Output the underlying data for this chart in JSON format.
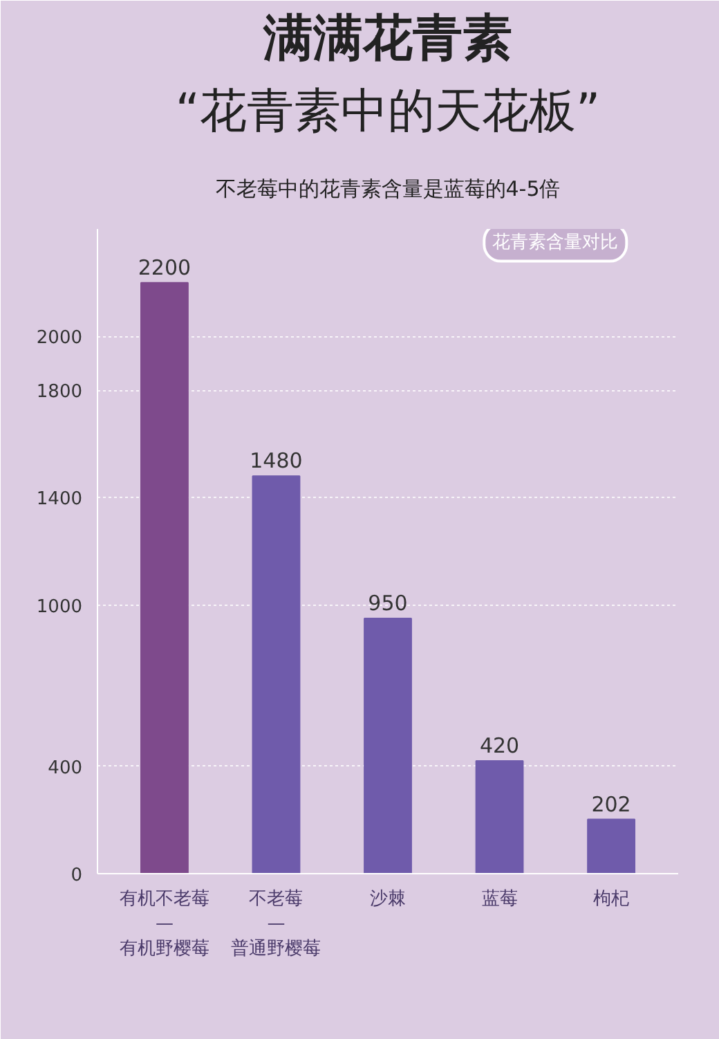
{
  "chart_data": {
    "type": "bar",
    "title": "满满花青素",
    "subtitle": "“花青素中的天花板”",
    "annotations": [
      "不老莓中的花青素含量是蓝莓的4-5倍",
      "花青素含量对比"
    ],
    "categories": [
      "有机不老莓 — 有机野樱莓",
      "不老莓 — 普通野樱莓",
      "沙棘",
      "蓝莓",
      "枸杞"
    ],
    "values": [
      2200,
      1480,
      950,
      420,
      202
    ],
    "colors": [
      "#7e4a8c",
      "#6f5bab",
      "#6f5bab",
      "#6f5bab",
      "#6f5bab"
    ],
    "data_labels": true,
    "ylim": [
      0,
      2400
    ],
    "yticks": [
      0,
      400,
      1000,
      1400,
      1800,
      2000
    ],
    "grid": "y"
  }
}
